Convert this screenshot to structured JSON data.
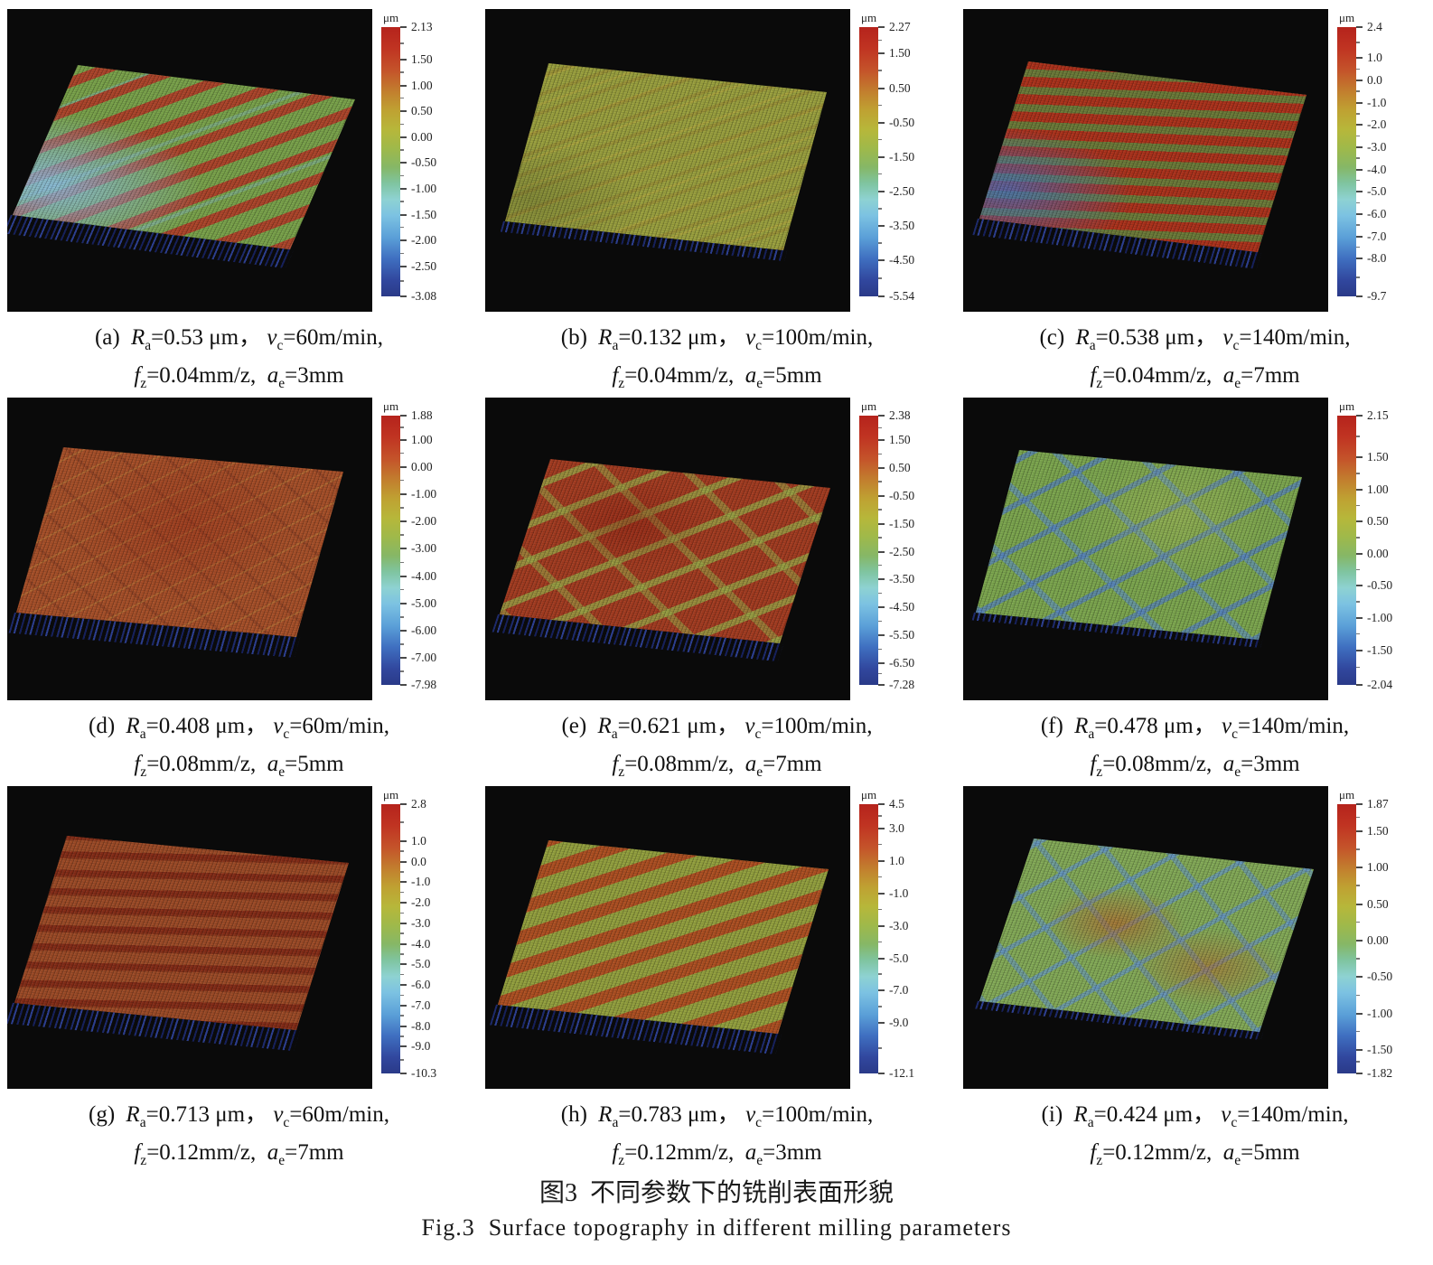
{
  "figure": {
    "caption_zh": "图3  不同参数下的铣削表面形貌",
    "caption_en": "Fig.3  Surface topography in different milling parameters"
  },
  "labels": {
    "ra_sym": "R",
    "ra_sub": "a",
    "vc_sym": "v",
    "vc_sub": "c",
    "fz_sym": "f",
    "fz_sub": "z",
    "ae_sym": "a",
    "ae_sub": "e",
    "eq": "=",
    "um_comma": " μm，",
    "vc_unit": "m/min,",
    "fz_unit": "mm/z, ",
    "ae_unit": "mm"
  },
  "chart_data": {
    "type": "surface",
    "description": "3x3 grid of 3D milled-surface topography maps, each with a vertical μm color scale and milling-parameter caption",
    "panels": [
      {
        "label": "(a)",
        "ra": "0.53",
        "vc": "60",
        "fz": "0.04",
        "ae": "3",
        "colorbar": {
          "unit": "μm",
          "max": 2.13,
          "min": -3.08,
          "ticks": [
            "2.13",
            "1.50",
            "1.00",
            "0.50",
            "0.00",
            "-0.50",
            "-1.00",
            "-1.50",
            "-2.00",
            "-2.50",
            "-3.08"
          ]
        },
        "render": {
          "base": "#79a24a",
          "fringe": 26,
          "quad": {
            "p0": [
              78,
              62
            ],
            "p1": [
              385,
              100
            ],
            "p3": [
              6,
              228
            ]
          },
          "layers": [
            {
              "kind": "patch",
              "color": "rgba(140,190,225,0.9)",
              "x": "8%",
              "y": "78%",
              "r": "42%"
            },
            {
              "kind": "stripes",
              "angle": -38,
              "color": "rgba(178,58,38,0.9)",
              "w": 14,
              "g": 22
            },
            {
              "kind": "stripes",
              "angle": -38,
              "color": "rgba(130,185,215,0.35)",
              "w": 5,
              "g": 95
            }
          ]
        }
      },
      {
        "label": "(b)",
        "ra": "0.132",
        "vc": "100",
        "fz": "0.04",
        "ae": "5",
        "colorbar": {
          "unit": "μm",
          "max": 2.27,
          "min": -5.54,
          "ticks": [
            "2.27",
            "1.50",
            "0.50",
            "-0.50",
            "-1.50",
            "-2.50",
            "-3.50",
            "-4.50",
            "-5.54"
          ]
        },
        "render": {
          "base": "#9aa03e",
          "fringe": 14,
          "quad": {
            "p0": [
              70,
              60
            ],
            "p1": [
              378,
              92
            ],
            "p3": [
              22,
              235
            ]
          },
          "layers": [
            {
              "kind": "patch",
              "color": "rgba(60,70,30,0.25)",
              "x": "6%",
              "y": "85%",
              "r": "30%"
            },
            {
              "kind": "stripes",
              "angle": -32,
              "color": "rgba(150,120,40,0.35)",
              "w": 5,
              "g": 18
            },
            {
              "kind": "stripes",
              "angle": -32,
              "color": "rgba(200,170,60,0.3)",
              "w": 3,
              "g": 29
            }
          ]
        }
      },
      {
        "label": "(c)",
        "ra": "0.538",
        "vc": "140",
        "fz": "0.04",
        "ae": "7",
        "colorbar": {
          "unit": "μm",
          "max": 2.4,
          "min": -9.7,
          "ticks": [
            "2.4",
            "1.0",
            "0.0",
            "-1.0",
            "-2.0",
            "-3.0",
            "-4.0",
            "-5.0",
            "-6.0",
            "-7.0",
            "-8.0",
            "-9.7"
          ]
        },
        "render": {
          "base": "#6b7a38",
          "fringe": 22,
          "quad": {
            "p0": [
              72,
              58
            ],
            "p1": [
              380,
              95
            ],
            "p3": [
              18,
              232
            ]
          },
          "layers": [
            {
              "kind": "patch",
              "color": "rgba(70,110,190,0.8)",
              "x": "6%",
              "y": "80%",
              "r": "34%"
            },
            {
              "kind": "stripes",
              "angle": -6,
              "color": "rgba(175,45,25,0.95)",
              "w": 13,
              "g": 10
            },
            {
              "kind": "stripes",
              "angle": -6,
              "color": "rgba(220,120,60,0.4)",
              "w": 3,
              "g": 20
            }
          ]
        }
      },
      {
        "label": "(d)",
        "ra": "0.408",
        "vc": "60",
        "fz": "0.08",
        "ae": "5",
        "colorbar": {
          "unit": "μm",
          "max": 1.88,
          "min": -7.98,
          "ticks": [
            "1.88",
            "1.00",
            "0.00",
            "-1.00",
            "-2.00",
            "-3.00",
            "-4.00",
            "-5.00",
            "-6.00",
            "-7.00",
            "-7.98"
          ]
        },
        "render": {
          "base": "#a64f28",
          "fringe": 26,
          "quad": {
            "p0": [
              62,
              55
            ],
            "p1": [
              372,
              82
            ],
            "p3": [
              10,
              238
            ]
          },
          "layers": [
            {
              "kind": "patch",
              "color": "rgba(150,40,20,0.4)",
              "x": "50%",
              "y": "40%",
              "r": "55%"
            },
            {
              "kind": "stripes",
              "angle": -40,
              "color": "rgba(200,160,70,0.3)",
              "w": 2,
              "g": 24
            },
            {
              "kind": "stripes",
              "angle": 38,
              "color": "rgba(120,50,30,0.35)",
              "w": 3,
              "g": 30
            }
          ]
        }
      },
      {
        "label": "(e)",
        "ra": "0.621",
        "vc": "100",
        "fz": "0.08",
        "ae": "7",
        "colorbar": {
          "unit": "μm",
          "max": 2.38,
          "min": -7.28,
          "ticks": [
            "2.38",
            "1.50",
            "0.50",
            "-0.50",
            "-1.50",
            "-2.50",
            "-3.50",
            "-4.50",
            "-5.50",
            "-6.50",
            "-7.28"
          ]
        },
        "render": {
          "base": "#a33b20",
          "fringe": 24,
          "quad": {
            "p0": [
              72,
              68
            ],
            "p1": [
              382,
              100
            ],
            "p3": [
              16,
              240
            ]
          },
          "layers": [
            {
              "kind": "patch",
              "color": "rgba(140,30,15,0.5)",
              "x": "35%",
              "y": "35%",
              "r": "30%"
            },
            {
              "kind": "stripes",
              "angle": -36,
              "color": "rgba(150,170,70,0.75)",
              "w": 9,
              "g": 36
            },
            {
              "kind": "stripes",
              "angle": 40,
              "color": "rgba(150,170,70,0.55)",
              "w": 8,
              "g": 55
            }
          ]
        }
      },
      {
        "label": "(f)",
        "ra": "0.478",
        "vc": "140",
        "fz": "0.08",
        "ae": "3",
        "colorbar": {
          "unit": "μm",
          "max": 2.15,
          "min": -2.04,
          "ticks": [
            "2.15",
            "1.50",
            "1.00",
            "0.50",
            "0.00",
            "-0.50",
            "-1.00",
            "-1.50",
            "-2.04"
          ]
        },
        "render": {
          "base": "#7ca64e",
          "fringe": 10,
          "quad": {
            "p0": [
              62,
              58
            ],
            "p1": [
              375,
              88
            ],
            "p3": [
              14,
              238
            ]
          },
          "layers": [
            {
              "kind": "patch",
              "color": "rgba(180,190,90,0.35)",
              "x": "60%",
              "y": "30%",
              "r": "40%"
            },
            {
              "kind": "stripes",
              "angle": -42,
              "color": "rgba(80,125,195,0.7)",
              "w": 7,
              "g": 42
            },
            {
              "kind": "stripes",
              "angle": 40,
              "color": "rgba(90,140,205,0.6)",
              "w": 7,
              "g": 54
            }
          ]
        }
      },
      {
        "label": "(g)",
        "ra": "0.713",
        "vc": "60",
        "fz": "0.12",
        "ae": "7",
        "colorbar": {
          "unit": "μm",
          "max": 2.8,
          "min": -10.3,
          "ticks": [
            "2.8",
            "1.0",
            "0.0",
            "-1.0",
            "-2.0",
            "-3.0",
            "-4.0",
            "-5.0",
            "-6.0",
            "-7.0",
            "-8.0",
            "-9.0",
            "-10.3"
          ]
        },
        "render": {
          "base": "#9c4a26",
          "fringe": 26,
          "quad": {
            "p0": [
              66,
              55
            ],
            "p1": [
              378,
              85
            ],
            "p3": [
              8,
              240
            ]
          },
          "layers": [
            {
              "kind": "stripes",
              "angle": -5,
              "color": "rgba(125,35,18,0.8)",
              "w": 9,
              "g": 14
            },
            {
              "kind": "stripes",
              "angle": -5,
              "color": "rgba(185,175,80,0.35)",
              "w": 2,
              "g": 21
            }
          ]
        }
      },
      {
        "label": "(h)",
        "ra": "0.783",
        "vc": "100",
        "fz": "0.12",
        "ae": "3",
        "colorbar": {
          "unit": "μm",
          "max": 4.5,
          "min": -12.1,
          "ticks": [
            "4.5",
            "3.0",
            "1.0",
            "-1.0",
            "-3.0",
            "-5.0",
            "-7.0",
            "-9.0",
            "-12.1"
          ]
        },
        "render": {
          "base": "#93a03e",
          "fringe": 26,
          "quad": {
            "p0": [
              70,
              60
            ],
            "p1": [
              380,
              92
            ],
            "p3": [
              14,
              242
            ]
          },
          "layers": [
            {
              "kind": "stripes",
              "angle": -30,
              "color": "rgba(176,70,30,0.9)",
              "w": 16,
              "g": 20
            },
            {
              "kind": "stripes",
              "angle": -30,
              "color": "rgba(210,150,60,0.35)",
              "w": 4,
              "g": 32
            }
          ]
        }
      },
      {
        "label": "(i)",
        "ra": "0.424",
        "vc": "140",
        "fz": "0.12",
        "ae": "5",
        "colorbar": {
          "unit": "μm",
          "max": 1.87,
          "min": -1.82,
          "ticks": [
            "1.87",
            "1.50",
            "1.00",
            "0.50",
            "0.00",
            "-0.50",
            "-1.00",
            "-1.50",
            "-1.82"
          ]
        },
        "render": {
          "base": "#83aa57",
          "fringe": 10,
          "quad": {
            "p0": [
              78,
              58
            ],
            "p1": [
              388,
              92
            ],
            "p3": [
              18,
              238
            ]
          },
          "layers": [
            {
              "kind": "patch",
              "color": "rgba(175,105,45,0.75)",
              "x": "38%",
              "y": "45%",
              "r": "28%"
            },
            {
              "kind": "patch",
              "color": "rgba(175,105,45,0.6)",
              "x": "75%",
              "y": "65%",
              "r": "25%"
            },
            {
              "kind": "stripes",
              "angle": -45,
              "color": "rgba(95,145,205,0.65)",
              "w": 6,
              "g": 44
            },
            {
              "kind": "stripes",
              "angle": 43,
              "color": "rgba(95,145,205,0.55)",
              "w": 6,
              "g": 44
            }
          ]
        }
      }
    ]
  }
}
